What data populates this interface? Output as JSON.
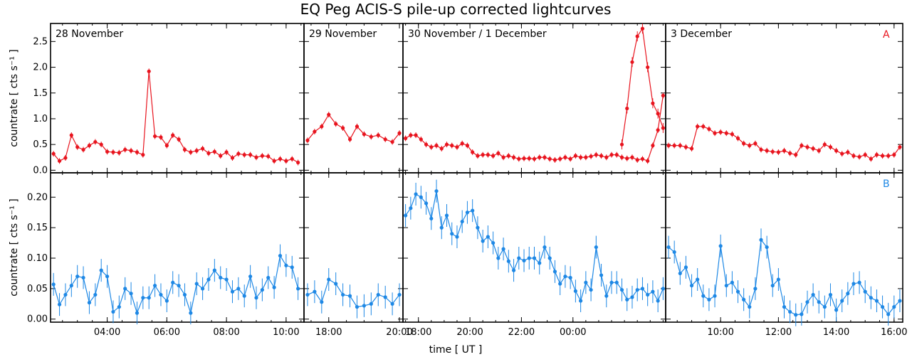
{
  "title": "EQ Peg ACIS-S pile-up corrected lightcurves",
  "colors": {
    "A": "#e8141e",
    "B": "#1e88e5",
    "axis": "#000000"
  },
  "chart_data": {
    "type": "line",
    "xlabel": "time [ UT ]",
    "grid": false,
    "rows": [
      {
        "id": "A",
        "ylabel": "countrate [ cts s⁻¹ ]",
        "ylim": [
          -0.05,
          2.85
        ],
        "yticks": [
          0.0,
          0.5,
          1.0,
          1.5,
          2.0,
          2.5
        ],
        "ytick_labels": [
          "0.0",
          "0.5",
          "1.0",
          "1.5",
          "2.0",
          "2.5"
        ]
      },
      {
        "id": "B",
        "ylabel": "countrate [ cts s⁻¹ ]",
        "ylim": [
          -0.005,
          0.24
        ],
        "yticks": [
          0.0,
          0.05,
          0.1,
          0.15,
          0.2
        ],
        "ytick_labels": [
          "0.00",
          "0.05",
          "0.10",
          "0.15",
          "0.20"
        ]
      }
    ],
    "panels": [
      {
        "label": "28 November",
        "xlim": [
          2.1,
          10.6
        ],
        "xticks": [
          4,
          6,
          8,
          10
        ],
        "xtick_labels": [
          "04:00",
          "06:00",
          "08:00",
          "10:00"
        ],
        "A": {
          "x": [
            2.2,
            2.4,
            2.6,
            2.8,
            3.0,
            3.2,
            3.4,
            3.6,
            3.8,
            4.0,
            4.2,
            4.4,
            4.6,
            4.8,
            5.0,
            5.2,
            5.4,
            5.6,
            5.8,
            6.0,
            6.2,
            6.4,
            6.6,
            6.8,
            7.0,
            7.2,
            7.4,
            7.6,
            7.8,
            8.0,
            8.2,
            8.4,
            8.6,
            8.8,
            9.0,
            9.2,
            9.4,
            9.6,
            9.8,
            10.0,
            10.2,
            10.4
          ],
          "y": [
            0.32,
            0.18,
            0.24,
            0.68,
            0.45,
            0.4,
            0.48,
            0.55,
            0.5,
            0.36,
            0.35,
            0.34,
            0.4,
            0.38,
            0.35,
            0.3,
            1.92,
            0.66,
            0.64,
            0.48,
            0.68,
            0.6,
            0.4,
            0.35,
            0.38,
            0.42,
            0.33,
            0.36,
            0.28,
            0.35,
            0.24,
            0.32,
            0.3,
            0.3,
            0.25,
            0.28,
            0.27,
            0.18,
            0.22,
            0.18,
            0.22,
            0.15
          ]
        },
        "B": {
          "x": [
            2.2,
            2.4,
            2.6,
            2.8,
            3.0,
            3.2,
            3.4,
            3.6,
            3.8,
            4.0,
            4.2,
            4.4,
            4.6,
            4.8,
            5.0,
            5.2,
            5.4,
            5.6,
            5.8,
            6.0,
            6.2,
            6.4,
            6.6,
            6.8,
            7.0,
            7.2,
            7.4,
            7.6,
            7.8,
            8.0,
            8.2,
            8.4,
            8.6,
            8.8,
            9.0,
            9.2,
            9.4,
            9.6,
            9.8,
            10.0,
            10.2,
            10.4
          ],
          "y": [
            0.057,
            0.024,
            0.04,
            0.055,
            0.07,
            0.068,
            0.027,
            0.04,
            0.08,
            0.07,
            0.012,
            0.02,
            0.05,
            0.042,
            0.01,
            0.035,
            0.035,
            0.055,
            0.04,
            0.03,
            0.06,
            0.055,
            0.04,
            0.01,
            0.058,
            0.05,
            0.065,
            0.08,
            0.068,
            0.065,
            0.045,
            0.05,
            0.038,
            0.07,
            0.035,
            0.048,
            0.068,
            0.052,
            0.104,
            0.088,
            0.085,
            0.05
          ]
        }
      },
      {
        "label": "29 November",
        "xlim": [
          17.3,
          20.1
        ],
        "xticks": [
          18,
          20
        ],
        "xtick_labels": [
          "18:00",
          "20:00"
        ],
        "A": {
          "x": [
            17.4,
            17.6,
            17.8,
            18.0,
            18.2,
            18.4,
            18.6,
            18.8,
            19.0,
            19.2,
            19.4,
            19.6,
            19.8,
            20.0
          ],
          "y": [
            0.58,
            0.75,
            0.85,
            1.08,
            0.9,
            0.82,
            0.6,
            0.85,
            0.7,
            0.65,
            0.68,
            0.6,
            0.55,
            0.72
          ]
        },
        "B": {
          "x": [
            17.4,
            17.6,
            17.8,
            18.0,
            18.2,
            18.4,
            18.6,
            18.8,
            19.0,
            19.2,
            19.4,
            19.6,
            19.8,
            20.0
          ],
          "y": [
            0.04,
            0.045,
            0.028,
            0.065,
            0.058,
            0.04,
            0.038,
            0.02,
            0.022,
            0.025,
            0.04,
            0.036,
            0.025,
            0.04
          ]
        }
      },
      {
        "label": "30 November / 1 December",
        "xlim": [
          17.4,
          27.6
        ],
        "xticks": [
          18,
          20,
          22,
          24
        ],
        "xtick_labels": [
          "18:00",
          "20:00",
          "22:00",
          "00:00"
        ],
        "A": {
          "x": [
            17.5,
            17.7,
            17.9,
            18.1,
            18.3,
            18.5,
            18.7,
            18.9,
            19.1,
            19.3,
            19.5,
            19.7,
            19.9,
            20.1,
            20.3,
            20.5,
            20.7,
            20.9,
            21.1,
            21.3,
            21.5,
            21.7,
            21.9,
            22.1,
            22.3,
            22.5,
            22.7,
            22.9,
            23.1,
            23.3,
            23.5,
            23.7,
            23.9,
            24.1,
            24.3,
            24.5,
            24.7,
            24.9,
            25.1,
            25.3,
            25.5,
            25.7,
            25.9,
            26.1,
            26.3,
            26.5,
            26.7,
            26.9,
            27.1,
            27.3,
            27.5
          ],
          "y": [
            0.62,
            0.68,
            0.68,
            0.6,
            0.5,
            0.45,
            0.48,
            0.42,
            0.5,
            0.48,
            0.45,
            0.52,
            0.48,
            0.35,
            0.28,
            0.3,
            0.3,
            0.28,
            0.33,
            0.25,
            0.28,
            0.25,
            0.22,
            0.23,
            0.23,
            0.22,
            0.25,
            0.25,
            0.22,
            0.2,
            0.22,
            0.25,
            0.22,
            0.28,
            0.25,
            0.25,
            0.27,
            0.3,
            0.28,
            0.25,
            0.3,
            0.3,
            0.25,
            0.23,
            0.25,
            0.2,
            0.22,
            0.18,
            0.48,
            0.78,
            1.45
          ]
        },
        "A_flare": {
          "x": [
            25.9,
            26.1,
            26.3,
            26.5,
            26.7,
            26.9,
            27.1,
            27.3,
            27.5
          ],
          "y": [
            0.5,
            1.2,
            2.1,
            2.6,
            2.75,
            2.0,
            1.3,
            1.1,
            0.82
          ]
        },
        "B": {
          "x": [
            17.5,
            17.7,
            17.9,
            18.1,
            18.3,
            18.5,
            18.7,
            18.9,
            19.1,
            19.3,
            19.5,
            19.7,
            19.9,
            20.1,
            20.3,
            20.5,
            20.7,
            20.9,
            21.1,
            21.3,
            21.5,
            21.7,
            21.9,
            22.1,
            22.3,
            22.5,
            22.7,
            22.9,
            23.1,
            23.3,
            23.5,
            23.7,
            23.9,
            24.1,
            24.3,
            24.5,
            24.7,
            24.9,
            25.1,
            25.3,
            25.5,
            25.7,
            25.9,
            26.1,
            26.3,
            26.5,
            26.7,
            26.9,
            27.1,
            27.3,
            27.5
          ],
          "y": [
            0.17,
            0.182,
            0.205,
            0.2,
            0.19,
            0.165,
            0.21,
            0.15,
            0.17,
            0.14,
            0.135,
            0.16,
            0.175,
            0.178,
            0.15,
            0.128,
            0.135,
            0.125,
            0.1,
            0.115,
            0.095,
            0.08,
            0.1,
            0.096,
            0.1,
            0.1,
            0.092,
            0.118,
            0.1,
            0.078,
            0.058,
            0.07,
            0.068,
            0.046,
            0.03,
            0.06,
            0.048,
            0.118,
            0.072,
            0.038,
            0.06,
            0.06,
            0.048,
            0.032,
            0.036,
            0.048,
            0.05,
            0.04,
            0.045,
            0.03,
            0.05
          ]
        }
      },
      {
        "label": "3 December",
        "corner": [
          "A",
          "B"
        ],
        "xlim": [
          8.1,
          16.3
        ],
        "xticks": [
          10,
          12,
          14,
          16
        ],
        "xtick_labels": [
          "10:00",
          "12:00",
          "14:00",
          "16:00"
        ],
        "A": {
          "x": [
            8.2,
            8.4,
            8.6,
            8.8,
            9.0,
            9.2,
            9.4,
            9.6,
            9.8,
            10.0,
            10.2,
            10.4,
            10.6,
            10.8,
            11.0,
            11.2,
            11.4,
            11.6,
            11.8,
            12.0,
            12.2,
            12.4,
            12.6,
            12.8,
            13.0,
            13.2,
            13.4,
            13.6,
            13.8,
            14.0,
            14.2,
            14.4,
            14.6,
            14.8,
            15.0,
            15.2,
            15.4,
            15.6,
            15.8,
            16.0,
            16.2
          ],
          "y": [
            0.48,
            0.48,
            0.48,
            0.45,
            0.42,
            0.85,
            0.85,
            0.8,
            0.72,
            0.74,
            0.72,
            0.7,
            0.62,
            0.52,
            0.48,
            0.52,
            0.4,
            0.38,
            0.36,
            0.35,
            0.38,
            0.33,
            0.3,
            0.48,
            0.45,
            0.42,
            0.38,
            0.5,
            0.45,
            0.38,
            0.32,
            0.35,
            0.28,
            0.26,
            0.3,
            0.22,
            0.3,
            0.28,
            0.28,
            0.3,
            0.45
          ]
        },
        "B": {
          "x": [
            8.2,
            8.4,
            8.6,
            8.8,
            9.0,
            9.2,
            9.4,
            9.6,
            9.8,
            10.0,
            10.2,
            10.4,
            10.6,
            10.8,
            11.0,
            11.2,
            11.4,
            11.6,
            11.8,
            12.0,
            12.2,
            12.4,
            12.6,
            12.8,
            13.0,
            13.2,
            13.4,
            13.6,
            13.8,
            14.0,
            14.2,
            14.4,
            14.6,
            14.8,
            15.0,
            15.2,
            15.4,
            15.6,
            15.8,
            16.0,
            16.2
          ],
          "y": [
            0.118,
            0.11,
            0.075,
            0.085,
            0.055,
            0.065,
            0.038,
            0.032,
            0.038,
            0.12,
            0.055,
            0.06,
            0.045,
            0.032,
            0.02,
            0.05,
            0.13,
            0.118,
            0.055,
            0.065,
            0.02,
            0.012,
            0.007,
            0.008,
            0.028,
            0.04,
            0.028,
            0.02,
            0.04,
            0.015,
            0.03,
            0.042,
            0.058,
            0.06,
            0.045,
            0.035,
            0.03,
            0.02,
            0.008,
            0.02,
            0.03
          ]
        }
      }
    ]
  }
}
